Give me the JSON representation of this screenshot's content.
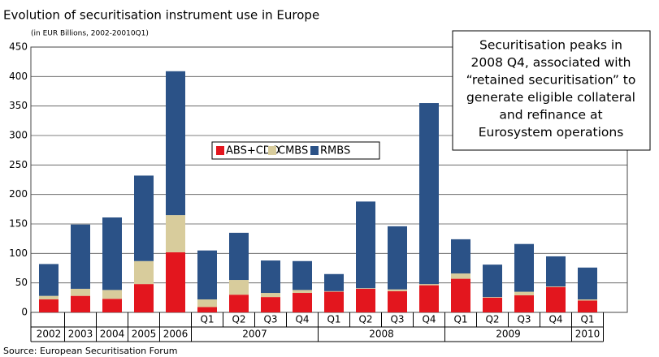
{
  "chart_data": {
    "type": "stacked_bar",
    "title": "Evolution of securitisation instrument use in Europe",
    "subtitle": "(in EUR Billions, 2002-20010Q1)",
    "source": "Source: European Securitisation Forum",
    "annotation": [
      "Securitisation peaks in",
      "2008 Q4, associated with",
      "“retained securitisation” to",
      "generate eligible collateral",
      "and refinance at",
      "Eurosystem operations"
    ],
    "categories": [
      null,
      null,
      null,
      null,
      null,
      "Q1",
      "Q2",
      "Q3",
      "Q4",
      "Q1",
      "Q2",
      "Q3",
      "Q4",
      "Q1",
      "Q2",
      "Q3",
      "Q4",
      "Q1"
    ],
    "groups": [
      {
        "label": "2002",
        "span": 1
      },
      {
        "label": "2003",
        "span": 1
      },
      {
        "label": "2004",
        "span": 1
      },
      {
        "label": "2005",
        "span": 1
      },
      {
        "label": "2006",
        "span": 1
      },
      {
        "label": "2007",
        "span": 4
      },
      {
        "label": "2008",
        "span": 4
      },
      {
        "label": "2009",
        "span": 4
      },
      {
        "label": "2010",
        "span": 1
      }
    ],
    "series": [
      {
        "name": "ABS+CDO",
        "color": "#e3161e",
        "values": [
          22,
          28,
          23,
          48,
          102,
          9,
          30,
          26,
          33,
          35,
          40,
          36,
          46,
          57,
          25,
          29,
          43,
          20
        ]
      },
      {
        "name": "CMBS",
        "color": "#d8cc9c",
        "values": [
          6,
          12,
          15,
          39,
          63,
          13,
          25,
          7,
          5,
          1,
          1,
          3,
          2,
          9,
          1,
          6,
          1,
          2
        ]
      },
      {
        "name": "RMBS",
        "color": "#2b5287",
        "values": [
          54,
          109,
          123,
          145,
          244,
          83,
          80,
          55,
          49,
          29,
          147,
          107,
          307,
          58,
          55,
          81,
          51,
          54
        ]
      }
    ],
    "ylim": [
      0,
      450
    ],
    "yticks": [
      0,
      50,
      100,
      150,
      200,
      250,
      300,
      350,
      400,
      450
    ],
    "grid": true
  }
}
